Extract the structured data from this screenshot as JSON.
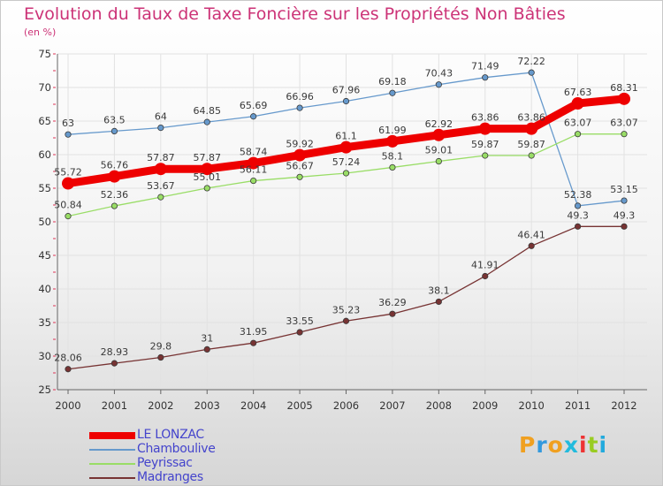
{
  "chart_data": {
    "type": "line",
    "title": "Evolution du Taux de Taxe Foncière sur les Propriétés Non Bâties",
    "subtitle": "(en %)",
    "xlabel": "",
    "ylabel": "(en %)",
    "ylim": [
      25,
      75
    ],
    "yticks": [
      25,
      30,
      35,
      40,
      45,
      50,
      55,
      60,
      65,
      70,
      75
    ],
    "grid": true,
    "legend_position": "bottom-left",
    "categories": [
      "2000",
      "2001",
      "2002",
      "2003",
      "2004",
      "2005",
      "2006",
      "2007",
      "2008",
      "2009",
      "2010",
      "2011",
      "2012"
    ],
    "series": [
      {
        "name": "LE LONZAC",
        "color": "#ee0000",
        "emphasis": true,
        "values": [
          55.72,
          56.76,
          57.87,
          57.87,
          58.74,
          59.92,
          61.1,
          61.99,
          62.92,
          63.86,
          63.86,
          67.63,
          68.31
        ],
        "labels": [
          "55.72",
          "56.76",
          "57.87",
          "57.87",
          "58.74",
          "59.92",
          "61.1",
          "61.99",
          "62.92",
          "63.86",
          "63.86",
          "67.63",
          "68.31"
        ]
      },
      {
        "name": "Chamboulive",
        "color": "#6699cc",
        "emphasis": false,
        "values": [
          63,
          63.5,
          64,
          64.85,
          65.69,
          66.96,
          67.96,
          69.18,
          70.43,
          71.49,
          72.22,
          52.38,
          53.15
        ],
        "labels": [
          "63",
          "63.5",
          "64",
          "64.85",
          "65.69",
          "66.96",
          "67.96",
          "69.18",
          "70.43",
          "71.49",
          "72.22",
          "52.38",
          "53.15"
        ]
      },
      {
        "name": "Peyrissac",
        "color": "#99dd66",
        "emphasis": false,
        "values": [
          50.84,
          52.36,
          53.67,
          55.01,
          56.11,
          56.67,
          57.24,
          58.1,
          59.01,
          59.87,
          59.87,
          63.07,
          63.07
        ],
        "labels": [
          "50.84",
          "52.36",
          "53.67",
          "55.01",
          "56.11",
          "56.67",
          "57.24",
          "58.1",
          "59.01",
          "59.87",
          "59.87",
          "63.07",
          "63.07"
        ]
      },
      {
        "name": "Madranges",
        "color": "#773333",
        "emphasis": false,
        "values": [
          28.06,
          28.93,
          29.8,
          31,
          31.95,
          33.55,
          35.23,
          36.29,
          38.1,
          41.91,
          46.41,
          49.3,
          49.3
        ],
        "labels": [
          "28.06",
          "28.93",
          "29.8",
          "31",
          "31.95",
          "33.55",
          "35.23",
          "36.29",
          "38.1",
          "41.91",
          "46.41",
          "49.3",
          "49.3"
        ]
      }
    ]
  },
  "brand": {
    "text": "Proxiti",
    "letter_colors": [
      "#f0a020",
      "#3399dd",
      "#f0a020",
      "#22bbdd",
      "#ee3333",
      "#99cc22",
      "#22aadd"
    ]
  }
}
